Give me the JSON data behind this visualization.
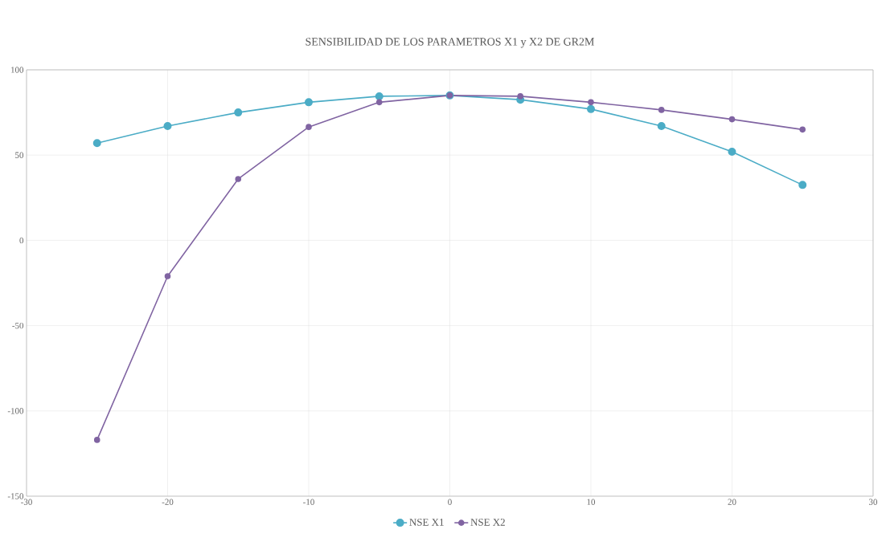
{
  "chart_data": {
    "type": "line",
    "title": "SENSIBILIDAD  DE LOS PARAMETROS  X1 y X2 DE GR2M",
    "x": [
      -25,
      -20,
      -15,
      -10,
      -5,
      0,
      5,
      10,
      15,
      20,
      25
    ],
    "series": [
      {
        "name": "NSE X1",
        "color": "#4bacc6",
        "values": [
          57,
          67,
          75,
          81,
          84.5,
          85,
          82.5,
          77,
          67,
          52,
          32.5
        ]
      },
      {
        "name": "NSE X2",
        "color": "#8064a2",
        "values": [
          -117,
          -21,
          36,
          66.5,
          81,
          85,
          84.5,
          81,
          76.5,
          71,
          65
        ]
      }
    ],
    "xlim": [
      -30,
      30
    ],
    "xticks": [
      -30,
      -20,
      -10,
      0,
      10,
      20,
      30
    ],
    "ylim": [
      -150,
      100
    ],
    "yticks": [
      -150,
      -100,
      -50,
      0,
      50,
      100
    ],
    "grid": true,
    "legend": "bottom",
    "marker": "circle",
    "line_style": "solid"
  }
}
